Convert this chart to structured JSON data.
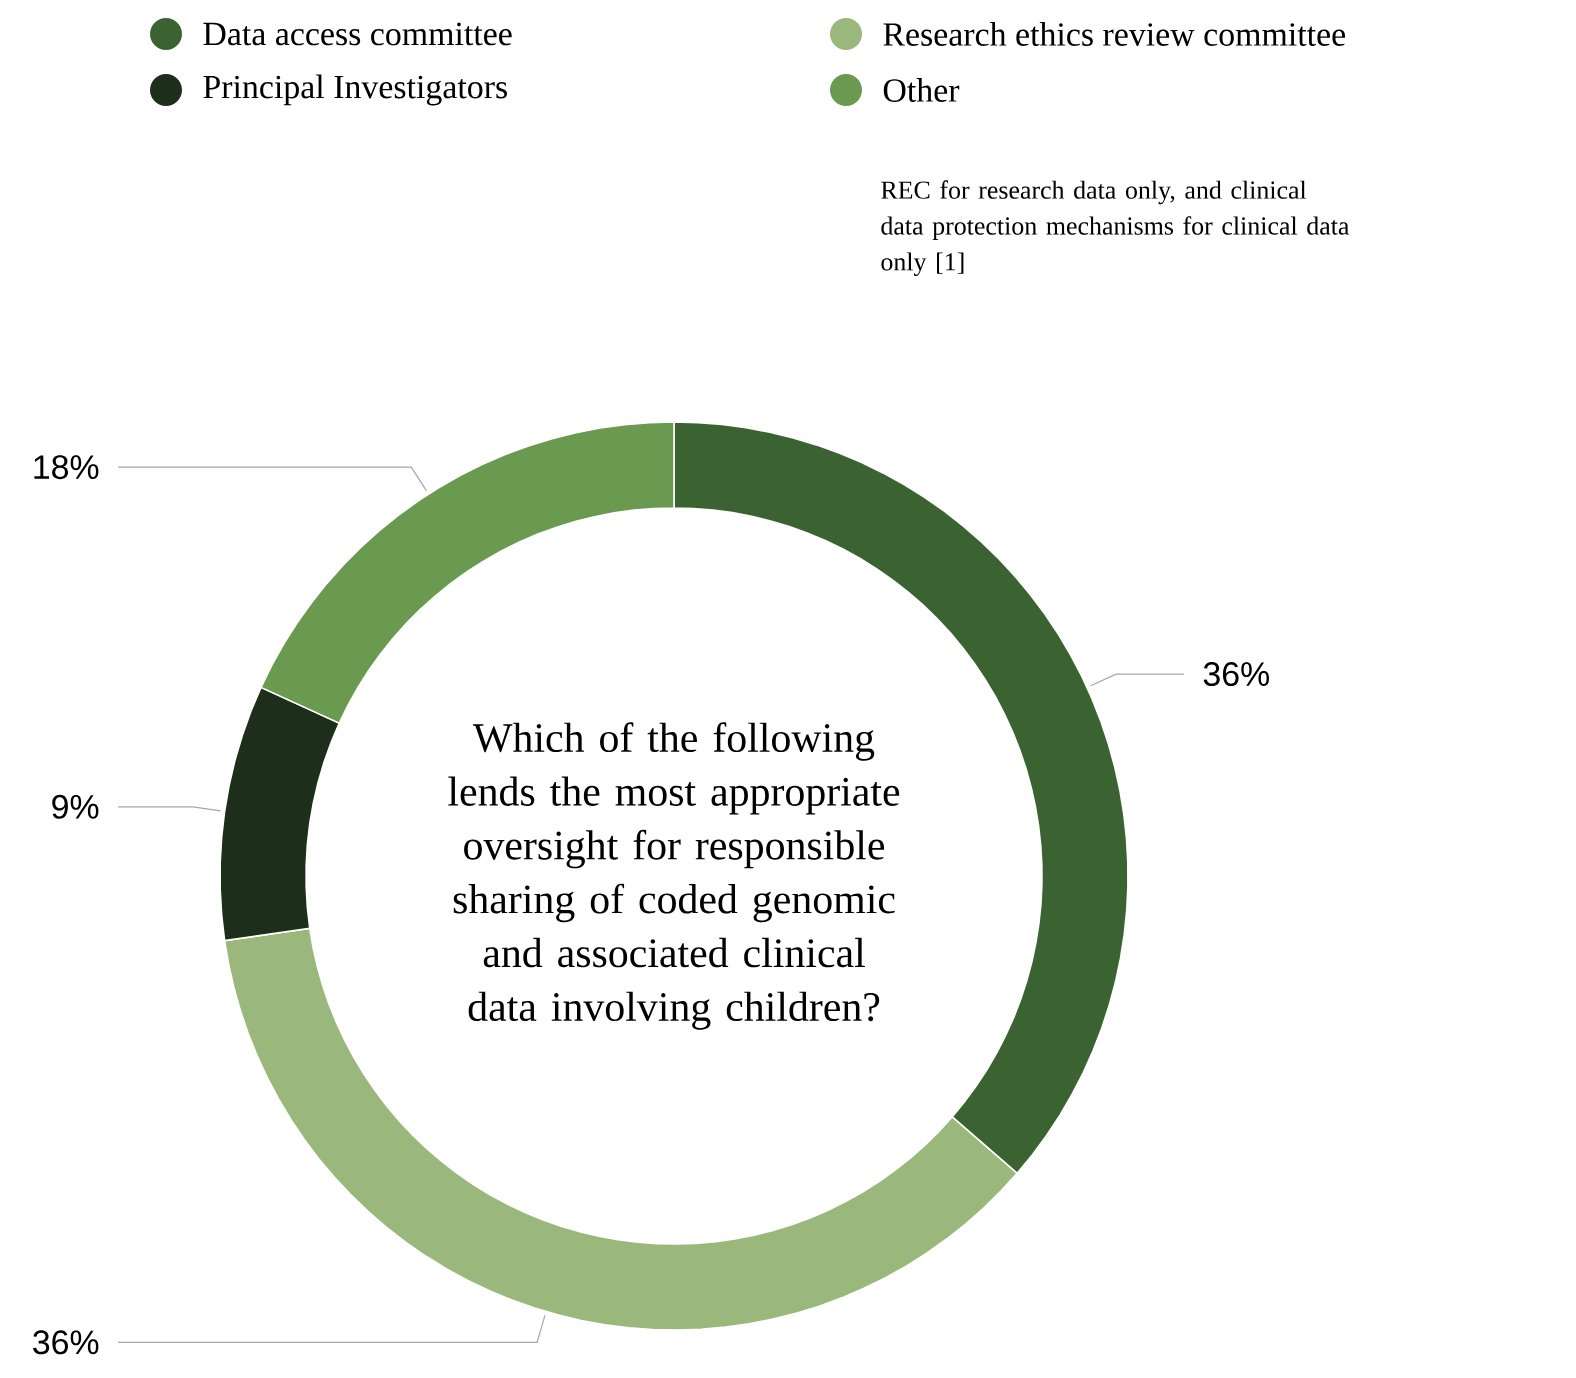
{
  "chart_data": {
    "type": "donut",
    "title": "Which of the following lends the most appropriate oversight for responsible sharing of coded genomic and associated clinical data involving children?",
    "categories": [
      "Data access committee",
      "Research ethics review committee",
      "Principal Investigators",
      "Other"
    ],
    "values": [
      36,
      36,
      9,
      18
    ],
    "value_labels": [
      "36%",
      "36%",
      "9%",
      "18%"
    ],
    "colors": [
      "#3b6331",
      "#9ab87b",
      "#1d2e1b",
      "#6a9a4f"
    ],
    "legend": "top",
    "annotations": [
      "REC for research data only, and clinical data protection mechanisms for clinical data only [1]"
    ]
  }
}
